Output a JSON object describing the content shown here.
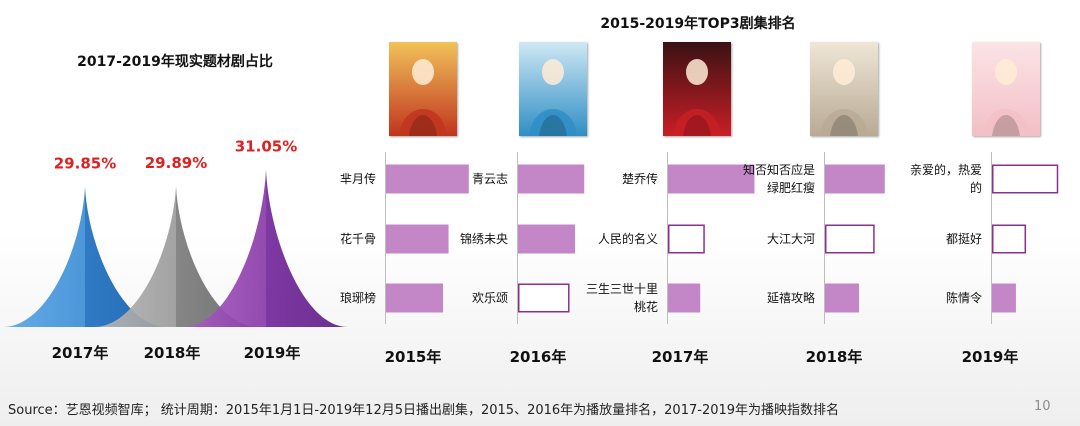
{
  "left_chart": {
    "title": "2017-2019年现实题材剧占比",
    "colors": [
      "#3D8ED6",
      "#9B9B9B",
      "#8A3BA8"
    ],
    "label_color": "#E02020"
  },
  "right_chart": {
    "title": "2015-2019年TOP3剧集排名"
  },
  "source_text": "Source：艺恩视频智库； 统计周期：2015年1月1日-2019年12月5日播出剧集，2015、2016年为播放量排名，2017-2019年为播映指数排名",
  "page_number": "10",
  "chart_data": [
    {
      "type": "area",
      "title": "2017-2019年现实题材剧占比",
      "categories": [
        "2017年",
        "2018年",
        "2019年"
      ],
      "values": [
        29.85,
        29.89,
        31.05
      ],
      "value_labels": [
        "29.85%",
        "29.89%",
        "31.05%"
      ]
    },
    {
      "type": "bar",
      "title": "2015-2019年TOP3剧集排名",
      "groups": [
        {
          "year": "2015年",
          "poster_colors": [
            "#c0351e",
            "#f1c25a"
          ],
          "items": [
            {
              "name": "芈月传",
              "value": 0.9,
              "filled": true
            },
            {
              "name": "花千骨",
              "value": 0.68,
              "filled": true
            },
            {
              "name": "琅琊榜",
              "value": 0.62,
              "filled": true
            }
          ]
        },
        {
          "year": "2016年",
          "poster_colors": [
            "#2f8ec5",
            "#cfe8f4"
          ],
          "items": [
            {
              "name": "青云志",
              "value": 0.72,
              "filled": true
            },
            {
              "name": "锦绣未央",
              "value": 0.62,
              "filled": true
            },
            {
              "name": "欢乐颂",
              "value": 0.56,
              "filled": false
            }
          ]
        },
        {
          "year": "2017年",
          "poster_colors": [
            "#c81e26",
            "#3a1214"
          ],
          "items": [
            {
              "name": "楚乔传",
              "value": 0.94,
              "filled": true
            },
            {
              "name": "人民的名义",
              "value": 0.4,
              "filled": false
            },
            {
              "name": "三生三世十里桃花",
              "value": 0.35,
              "filled": true
            }
          ]
        },
        {
          "year": "2018年",
          "poster_colors": [
            "#b8aa95",
            "#efe6d7"
          ],
          "items": [
            {
              "name": "知否知否应是绿肥红瘦",
              "value": 0.65,
              "filled": true
            },
            {
              "name": "大江大河",
              "value": 0.54,
              "filled": false
            },
            {
              "name": "延禧攻略",
              "value": 0.37,
              "filled": true
            }
          ]
        },
        {
          "year": "2019年",
          "poster_colors": [
            "#f2bfc6",
            "#fbe4e6"
          ],
          "items": [
            {
              "name": "亲爱的，热爱的",
              "value": 0.72,
              "filled": false
            },
            {
              "name": "都挺好",
              "value": 0.37,
              "filled": false
            },
            {
              "name": "陈情令",
              "value": 0.26,
              "filled": true
            }
          ]
        }
      ]
    }
  ]
}
